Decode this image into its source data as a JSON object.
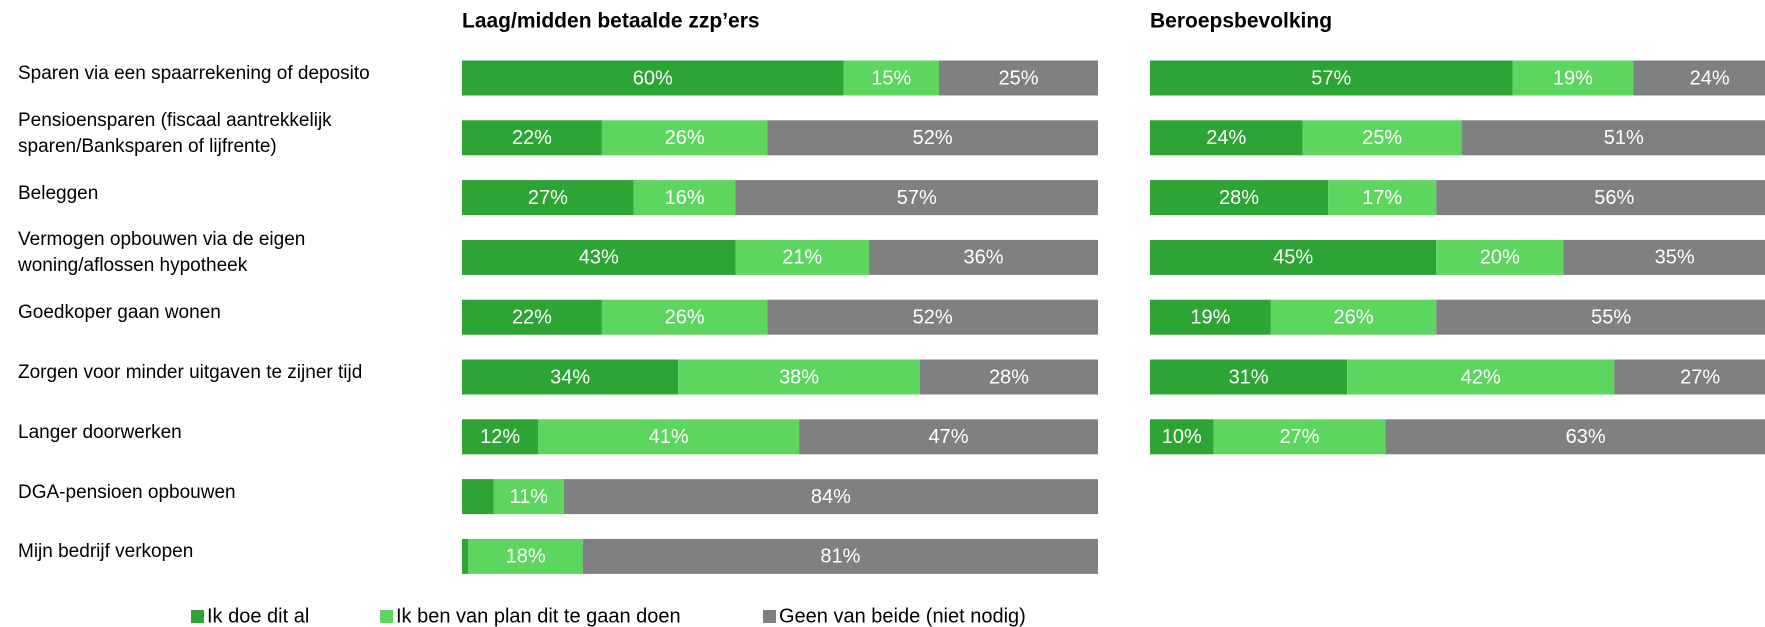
{
  "chart_data": [
    {
      "type": "stacked-bar-horizontal",
      "title": "Laag/midden betaalde zzp’ers",
      "categories": [
        "Sparen via een spaarrekening of deposito",
        "Pensioensparen (fiscaal aantrekkelijk\nsparen/Banksparen of lijfrente)",
        "Beleggen",
        "Vermogen opbouwen via de eigen\nwoning/aflossen hypotheek",
        "Goedkoper gaan wonen",
        "Zorgen voor minder uitgaven te zijner tijd",
        "Langer doorwerken",
        "DGA-pensioen opbouwen",
        "Mijn bedrijf verkopen"
      ],
      "xlim": [
        0,
        100
      ],
      "series": [
        {
          "name": "Ik doe dit al",
          "color": "#2ca534",
          "values": [
            60,
            22,
            27,
            43,
            22,
            34,
            12,
            5,
            1
          ],
          "value_labels": [
            "60%",
            "22%",
            "27%",
            "43%",
            "22%",
            "34%",
            "12%",
            null,
            null
          ]
        },
        {
          "name": "Ik ben van plan dit te gaan doen",
          "color": "#5cd65f",
          "values": [
            15,
            26,
            16,
            21,
            26,
            38,
            41,
            11,
            18
          ],
          "value_labels": [
            "15%",
            "26%",
            "16%",
            "21%",
            "26%",
            "38%",
            "41%",
            "11%",
            "18%"
          ]
        },
        {
          "name": "Geen van beide (niet nodig)",
          "color": "#808080",
          "values": [
            25,
            52,
            57,
            36,
            52,
            28,
            47,
            84,
            81
          ],
          "value_labels": [
            "25%",
            "52%",
            "57%",
            "36%",
            "52%",
            "28%",
            "47%",
            "84%",
            "81%"
          ]
        }
      ],
      "legend": "bottom"
    },
    {
      "type": "stacked-bar-horizontal",
      "title": "Beroepsbevolking",
      "xlim": [
        0,
        100
      ],
      "series": [
        {
          "name": "Ik doe dit al",
          "color": "#2ca534",
          "values": [
            57,
            24,
            28,
            45,
            19,
            31,
            10
          ],
          "value_labels": [
            "57%",
            "24%",
            "28%",
            "45%",
            "19%",
            "31%",
            "10%"
          ]
        },
        {
          "name": "Ik ben van plan dit te gaan doen",
          "color": "#5cd65f",
          "values": [
            19,
            25,
            17,
            20,
            26,
            42,
            27
          ],
          "value_labels": [
            "19%",
            "25%",
            "17%",
            "20%",
            "26%",
            "42%",
            "27%"
          ]
        },
        {
          "name": "Geen van beide (niet nodig)",
          "color": "#808080",
          "values": [
            24,
            51,
            56,
            35,
            55,
            27,
            63
          ],
          "value_labels": [
            "24%",
            "51%",
            "56%",
            "35%",
            "55%",
            "27%",
            "63%"
          ]
        }
      ]
    }
  ]
}
